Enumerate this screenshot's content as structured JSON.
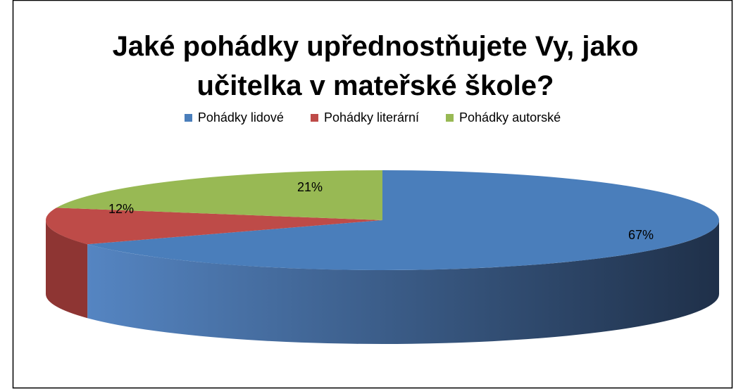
{
  "chart_data": {
    "type": "pie3d",
    "title": "Jaké pohádky upřednostňujete Vy, jako učitelka v mateřské škole?",
    "categories": [
      "Pohádky lidové",
      "Pohádky literární",
      "Pohádky autorské"
    ],
    "values": [
      67,
      12,
      21
    ],
    "value_labels": [
      "67%",
      "12%",
      "21%"
    ],
    "colors": [
      "#4a7ebb",
      "#be4b48",
      "#98b954"
    ],
    "legend": "top"
  }
}
